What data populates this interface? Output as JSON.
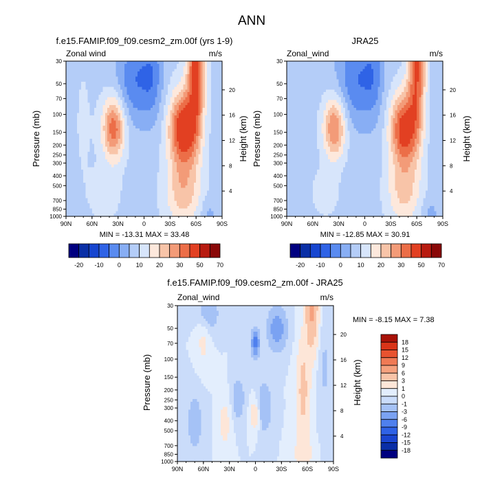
{
  "figure": {
    "title": "ANN",
    "colors": {
      "abs_scale": [
        "#000080",
        "#0a2fa6",
        "#1746d0",
        "#2f63e6",
        "#5a8bf0",
        "#88aef4",
        "#b4cdf8",
        "#d7e5fb",
        "#fde8dc",
        "#f8c4a8",
        "#f39b78",
        "#ec6e48",
        "#e24022",
        "#b81b10",
        "#8a0808"
      ],
      "diff_scale": [
        "#000080",
        "#0a2ea6",
        "#1a45d0",
        "#2f62e6",
        "#4f80ee",
        "#7aa2f2",
        "#a5c2f6",
        "#cadcfa",
        "#e3eefd",
        "#fde6d8",
        "#f9c4a8",
        "#f5a17e",
        "#f07a55",
        "#e85330",
        "#d93418",
        "#a81208"
      ]
    }
  },
  "panels": [
    {
      "title": "f.e15.FAMIP.f09_f09.cesm2_zm.00f (yrs 1-9)",
      "left_label": "Zonal wind",
      "right_label": "m/s",
      "y_label": "Pressure (mb)",
      "y2_label": "Height (km)",
      "min_max": "MIN = -13.31   MAX = 33.48"
    },
    {
      "title": "JRA25",
      "left_label": "Zonal_wind",
      "right_label": "m/s",
      "y_label": "Pressure (mb)",
      "y2_label": "Height (km)",
      "min_max": "MIN = -12.85   MAX = 30.91"
    },
    {
      "title": "f.e15.FAMIP.f09_f09.cesm2_zm.00f - JRA25",
      "left_label": "Zonal_wind",
      "right_label": "m/s",
      "y_label": "Pressure (mb)",
      "y2_label": "Height (km)",
      "min_max": "MIN =  -8.15   MAX =  7.38"
    }
  ],
  "chart_data": [
    {
      "type": "heatmap",
      "title": "f.e15.FAMIP.f09_f09.cesm2_zm.00f (yrs 1-9)",
      "variable": "Zonal wind",
      "units": "m/s",
      "xlabel": "",
      "x_ticks": [
        "90N",
        "60N",
        "30N",
        "0",
        "30S",
        "60S",
        "90S"
      ],
      "ylabel": "Pressure (mb)",
      "y_ticks": [
        30,
        50,
        70,
        100,
        150,
        200,
        250,
        300,
        400,
        500,
        700,
        850,
        1000
      ],
      "y2label": "Height (km)",
      "y2_ticks": [
        4,
        8,
        12,
        16,
        20
      ],
      "contour_levels": [
        -20,
        -10,
        0,
        10,
        20,
        30,
        50,
        70
      ],
      "min": -13.31,
      "max": 33.48,
      "features": [
        {
          "lat": 35,
          "p": 200,
          "u": 25
        },
        {
          "lat": -45,
          "p": 200,
          "u": 33
        },
        {
          "lat": -60,
          "p": 30,
          "u": 30
        },
        {
          "lat": 10,
          "p": 40,
          "u": -13
        }
      ]
    },
    {
      "type": "heatmap",
      "title": "JRA25",
      "variable": "Zonal_wind",
      "units": "m/s",
      "xlabel": "",
      "x_ticks": [
        "90N",
        "60N",
        "30N",
        "0",
        "30S",
        "60S",
        "90S"
      ],
      "ylabel": "Pressure (mb)",
      "y_ticks": [
        30,
        50,
        70,
        100,
        150,
        200,
        250,
        300,
        400,
        500,
        700,
        850,
        1000
      ],
      "y2label": "Height (km)",
      "y2_ticks": [
        4,
        8,
        12,
        16,
        20
      ],
      "contour_levels": [
        -20,
        -10,
        0,
        10,
        20,
        30,
        50,
        70
      ],
      "min": -12.85,
      "max": 30.91,
      "features": [
        {
          "lat": 35,
          "p": 200,
          "u": 24
        },
        {
          "lat": -45,
          "p": 200,
          "u": 30
        },
        {
          "lat": -60,
          "p": 30,
          "u": 28
        },
        {
          "lat": 10,
          "p": 40,
          "u": -12
        }
      ]
    },
    {
      "type": "heatmap",
      "title": "f.e15.FAMIP.f09_f09.cesm2_zm.00f - JRA25",
      "variable": "Zonal_wind",
      "units": "m/s",
      "xlabel": "",
      "x_ticks": [
        "90N",
        "60N",
        "30N",
        "0",
        "30S",
        "60S",
        "90S"
      ],
      "ylabel": "Pressure (mb)",
      "y_ticks": [
        30,
        50,
        70,
        100,
        150,
        200,
        250,
        300,
        400,
        500,
        700,
        850,
        1000
      ],
      "y2label": "Height (km)",
      "y2_ticks": [
        4,
        8,
        12,
        16,
        20
      ],
      "contour_levels": [
        -18,
        -15,
        -12,
        -9,
        -6,
        -3,
        -1,
        0,
        1,
        3,
        6,
        9,
        12,
        15,
        18
      ],
      "min": -8.15,
      "max": 7.38,
      "features": [
        {
          "lat": -65,
          "p": 30,
          "u": 7
        },
        {
          "lat": -55,
          "p": 300,
          "u": 4
        },
        {
          "lat": 0,
          "p": 60,
          "u": -8
        },
        {
          "lat": -25,
          "p": 50,
          "u": -5
        }
      ]
    }
  ],
  "colorbars": [
    {
      "labels": [
        "-20",
        "-10",
        "0",
        "10",
        "20",
        "30",
        "50",
        "70"
      ]
    },
    {
      "labels": [
        "-20",
        "-10",
        "0",
        "10",
        "20",
        "30",
        "50",
        "70"
      ]
    },
    {
      "labels": [
        "18",
        "15",
        "12",
        "9",
        "6",
        "3",
        "1",
        "0",
        "-1",
        "-3",
        "-6",
        "-9",
        "-12",
        "-15",
        "-18"
      ]
    }
  ]
}
